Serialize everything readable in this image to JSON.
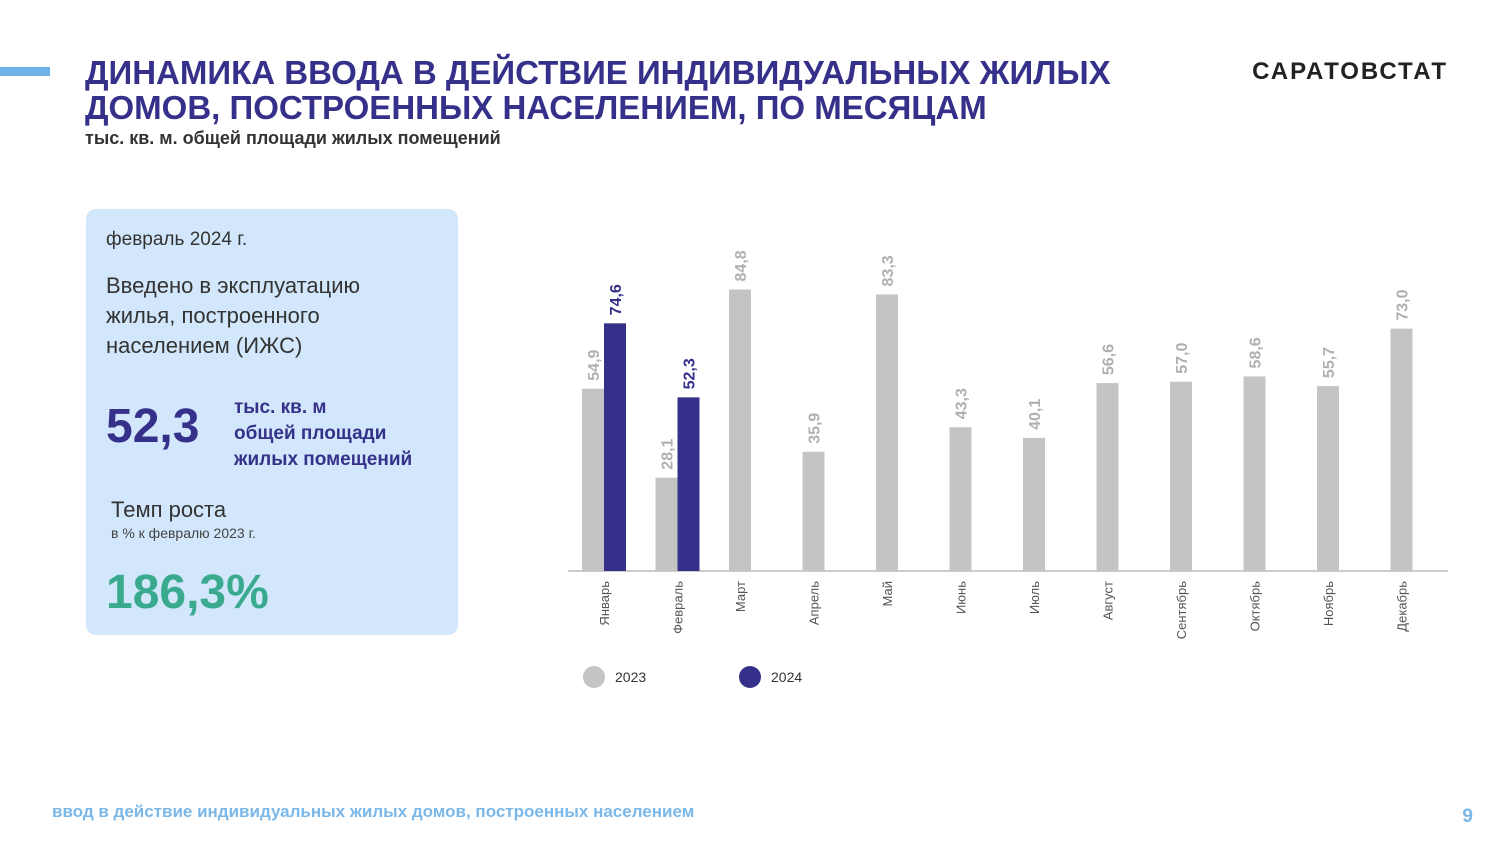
{
  "header": {
    "title": "ДИНАМИКА ВВОДА В ДЕЙСТВИЕ ИНДИВИДУАЛЬНЫХ ЖИЛЫХ ДОМОВ, ПОСТРОЕННЫХ НАСЕЛЕНИЕМ, ПО МЕСЯЦАМ",
    "subtitle": "тыс. кв. м. общей площади жилых помещений",
    "brand": "САРАТОВСТАТ"
  },
  "card": {
    "period": "февраль 2024 г.",
    "description": "Введено в эксплуатацию жилья, построенного населением (ИЖС)",
    "value": "52,3",
    "unit_line1": "тыс. кв. м",
    "unit_line2": "общей площади",
    "unit_line3": "жилых помещений",
    "growth_title": "Темп роста",
    "growth_note": "в % к  февралю 2023 г.",
    "growth_value": "186,3%"
  },
  "footer": {
    "text": "ввод в действие индивидуальных жилых домов, построенных населением",
    "page": "9"
  },
  "colors": {
    "series_2023": "#c4c4c4",
    "series_2024": "#35318a",
    "title": "#35318a",
    "growth": "#3aaa8e",
    "footer": "#7ab8ea"
  },
  "chart_data": {
    "type": "bar",
    "categories": [
      "Январь",
      "Февраль",
      "Март",
      "Апрель",
      "Май",
      "Июнь",
      "Июль",
      "Август",
      "Сентябрь",
      "Октябрь",
      "Ноябрь",
      "Декабрь"
    ],
    "series": [
      {
        "name": "2023",
        "values": [
          54.9,
          28.1,
          84.8,
          35.9,
          83.3,
          43.3,
          40.1,
          56.6,
          57.0,
          58.6,
          55.7,
          73.0
        ],
        "labels": [
          "54,9",
          "28,1",
          "84,8",
          "35,9",
          "83,3",
          "43,3",
          "40,1",
          "56,6",
          "57,0",
          "58,6",
          "55,7",
          "73,0"
        ]
      },
      {
        "name": "2024",
        "values": [
          74.6,
          52.3,
          null,
          null,
          null,
          null,
          null,
          null,
          null,
          null,
          null,
          null
        ],
        "labels": [
          "74,6",
          "52,3",
          "",
          "",
          "",
          "",
          "",
          "",
          "",
          "",
          "",
          ""
        ]
      }
    ],
    "ylim": [
      0,
      100
    ],
    "grid": false,
    "legend_position": "bottom"
  }
}
